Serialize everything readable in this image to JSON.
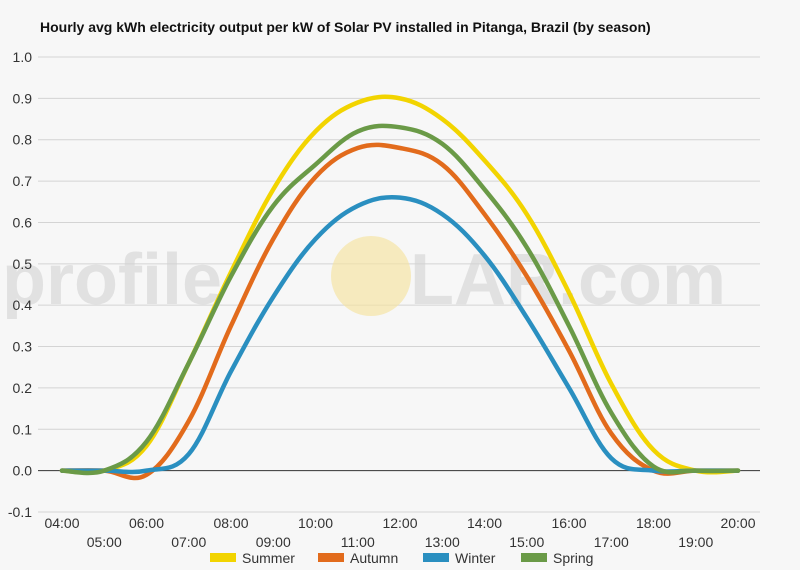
{
  "title": "Hourly avg kWh electricity output per kW of Solar PV installed in Pitanga, Brazil (by season)",
  "watermark": {
    "left": "profile",
    "right": "LAR.com",
    "sun_color": "#f6e3a0"
  },
  "chart_data": {
    "type": "line",
    "title": "Hourly avg kWh electricity output per kW of Solar PV installed in Pitanga, Brazil (by season)",
    "xlabel": "",
    "ylabel": "",
    "ylim": [
      -0.1,
      1.0
    ],
    "y_ticks": [
      "-0.1",
      "0.0",
      "0.1",
      "0.2",
      "0.3",
      "0.4",
      "0.5",
      "0.6",
      "0.7",
      "0.8",
      "0.9",
      "1.0"
    ],
    "x": [
      "04:00",
      "05:00",
      "06:00",
      "07:00",
      "08:00",
      "09:00",
      "10:00",
      "11:00",
      "12:00",
      "13:00",
      "14:00",
      "15:00",
      "16:00",
      "17:00",
      "18:00",
      "19:00",
      "20:00"
    ],
    "grid": true,
    "legend_position": "bottom",
    "series": [
      {
        "name": "Summer",
        "color": "#f2d400",
        "values": [
          0.0,
          0.0,
          0.06,
          0.26,
          0.48,
          0.68,
          0.82,
          0.89,
          0.9,
          0.85,
          0.75,
          0.62,
          0.43,
          0.21,
          0.05,
          0.0,
          0.0
        ]
      },
      {
        "name": "Autumn",
        "color": "#e26b1c",
        "values": [
          0.0,
          0.0,
          -0.01,
          0.12,
          0.35,
          0.56,
          0.71,
          0.78,
          0.78,
          0.74,
          0.62,
          0.47,
          0.29,
          0.09,
          0.0,
          0.0,
          0.0
        ]
      },
      {
        "name": "Winter",
        "color": "#2a8fc0",
        "values": [
          0.0,
          0.0,
          0.0,
          0.04,
          0.24,
          0.42,
          0.56,
          0.64,
          0.66,
          0.62,
          0.52,
          0.37,
          0.2,
          0.03,
          0.0,
          0.0,
          0.0
        ]
      },
      {
        "name": "Spring",
        "color": "#6a9a47",
        "values": [
          0.0,
          0.0,
          0.07,
          0.26,
          0.47,
          0.64,
          0.74,
          0.82,
          0.83,
          0.79,
          0.68,
          0.54,
          0.35,
          0.14,
          0.01,
          0.0,
          0.0
        ]
      }
    ]
  }
}
